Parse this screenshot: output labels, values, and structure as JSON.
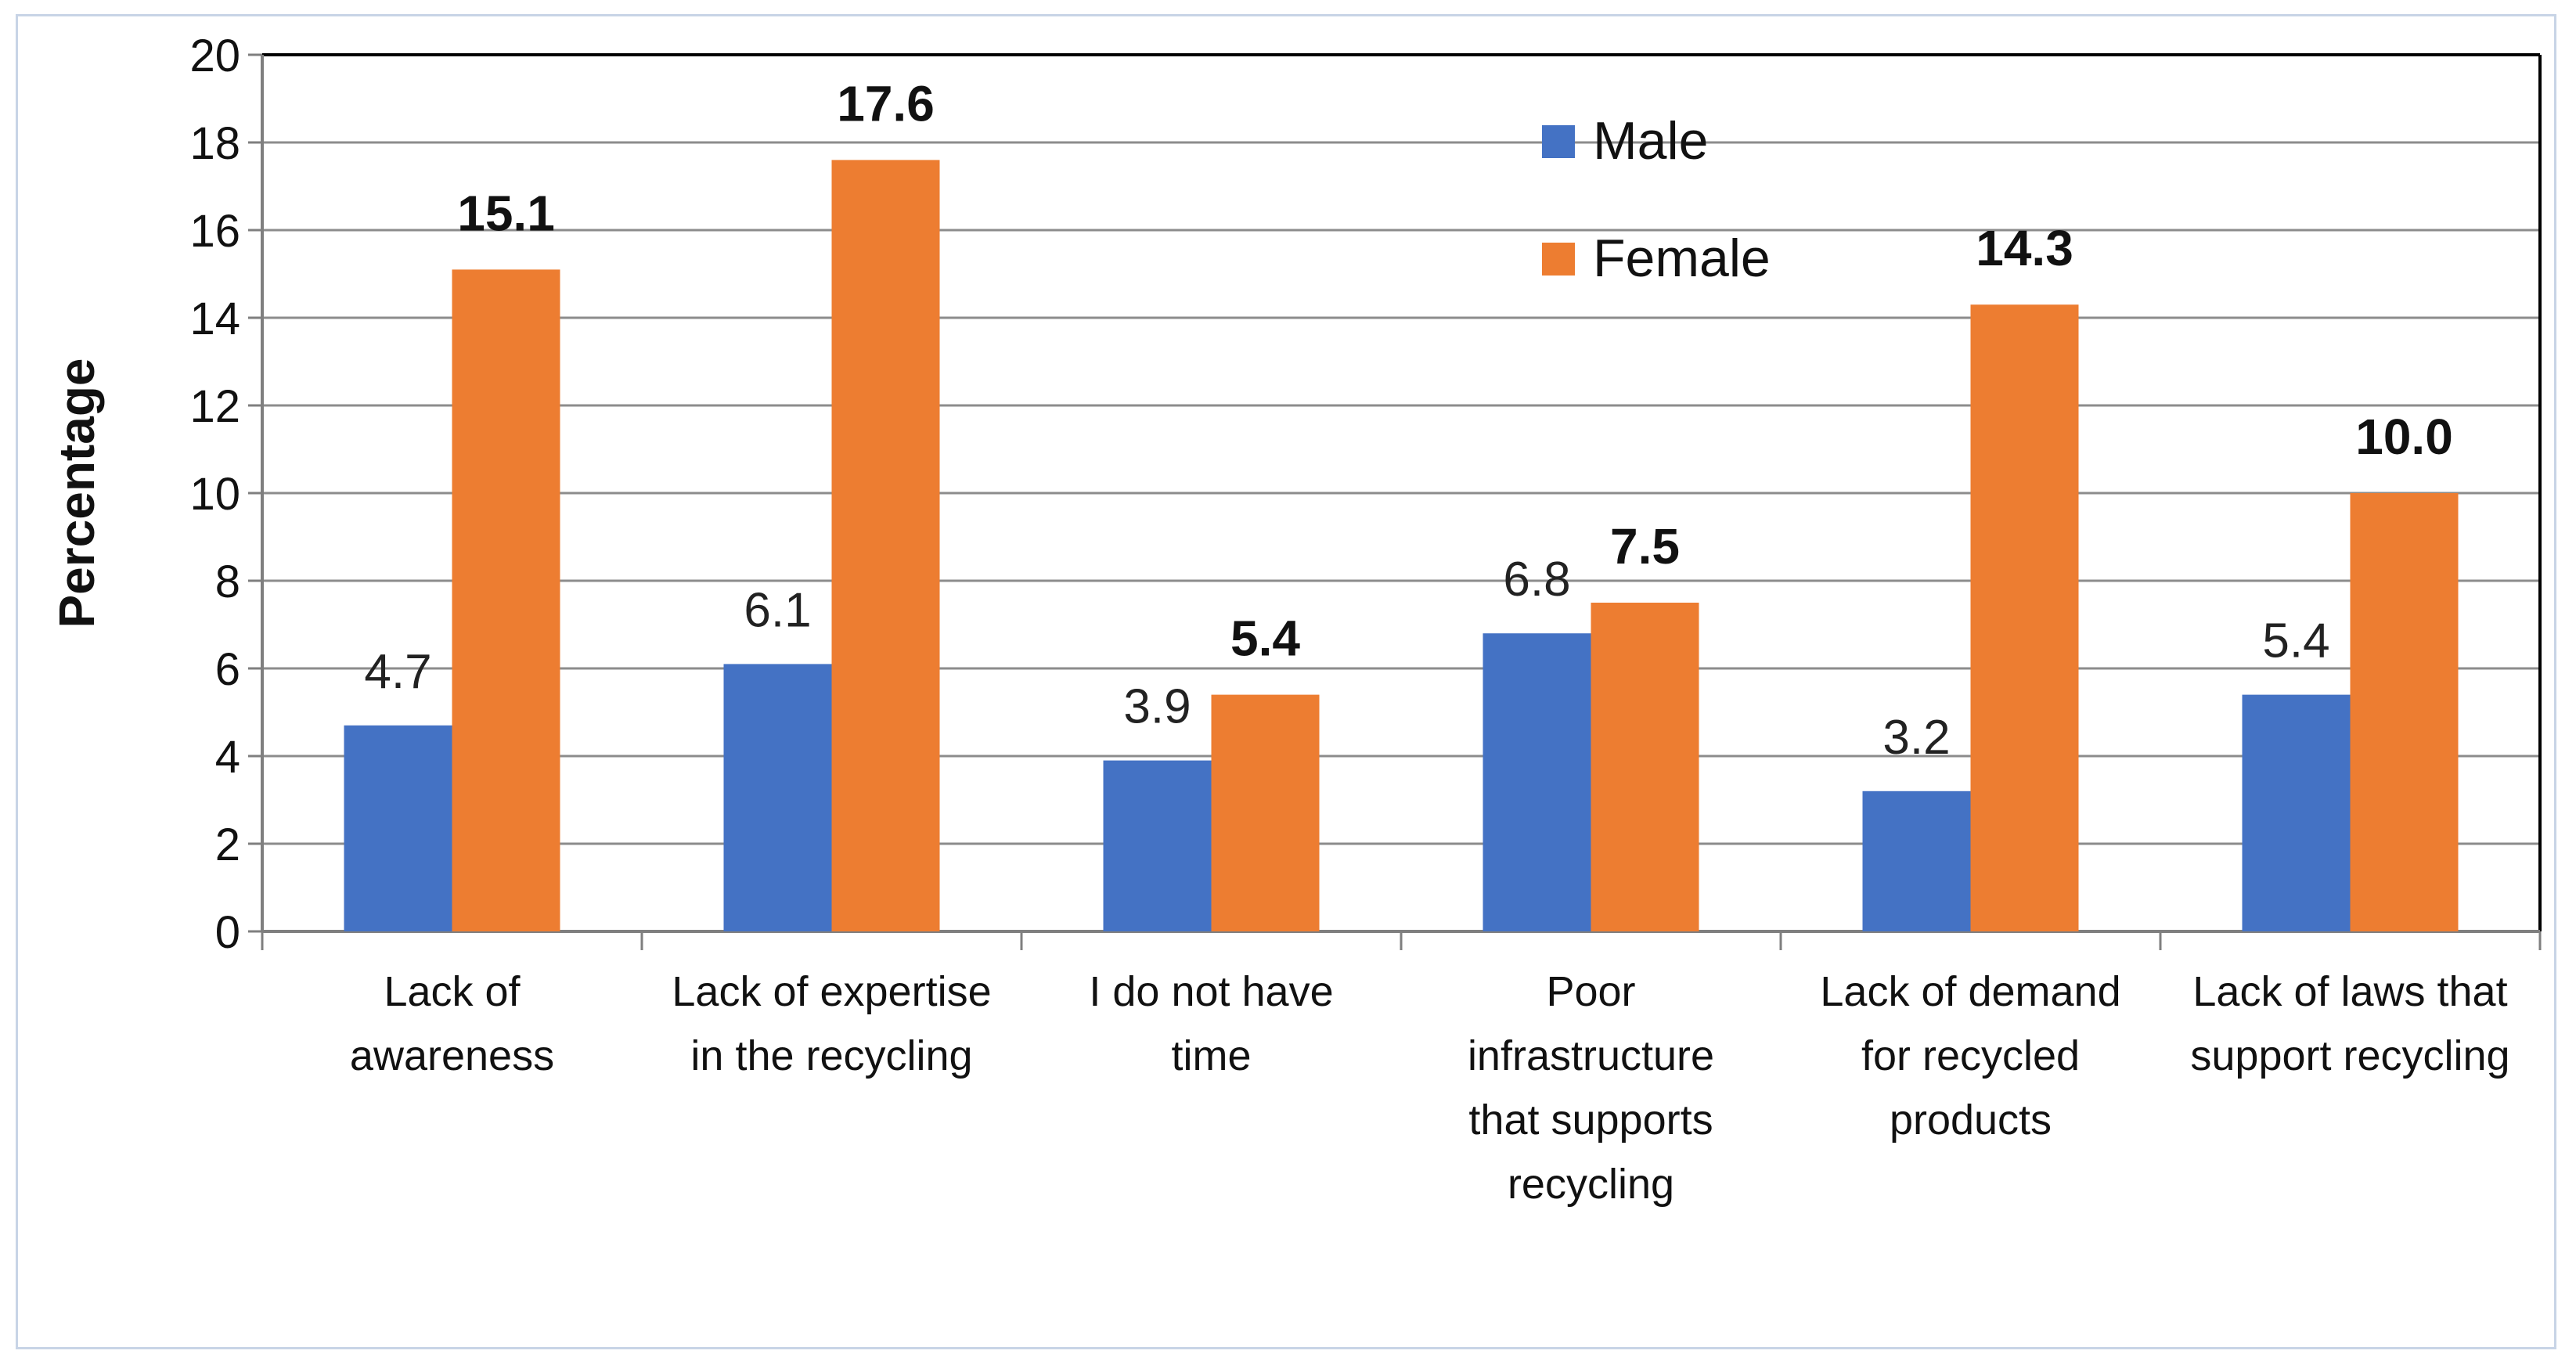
{
  "chart_data": {
    "type": "bar",
    "ylabel": "Percentage",
    "xlabel": "",
    "ylim": [
      0,
      20
    ],
    "yticks": [
      0,
      2,
      4,
      6,
      8,
      10,
      12,
      14,
      16,
      18,
      20
    ],
    "grid": true,
    "legend_position": "top-center",
    "categories": [
      [
        "Lack of",
        "awareness"
      ],
      [
        "Lack of expertise",
        "in the recycling"
      ],
      [
        "I do not have",
        "time"
      ],
      [
        "Poor",
        "infrastructure",
        "that supports",
        "recycling"
      ],
      [
        "Lack of demand",
        "for recycled",
        "products"
      ],
      [
        "Lack of laws that",
        "support recycling"
      ]
    ],
    "series": [
      {
        "name": "Male",
        "color": "#4472c4",
        "values": [
          4.7,
          6.1,
          3.9,
          6.8,
          3.2,
          5.4
        ],
        "labels": [
          "4.7",
          "6.1",
          "3.9",
          "6.8",
          "3.2",
          "5.4"
        ]
      },
      {
        "name": "Female",
        "color": "#ed7d31",
        "values": [
          15.1,
          17.6,
          5.4,
          7.5,
          14.3,
          10.0
        ],
        "labels": [
          "15.1",
          "17.6",
          "5.4",
          "7.5",
          "14.3",
          "10.0"
        ]
      }
    ]
  }
}
